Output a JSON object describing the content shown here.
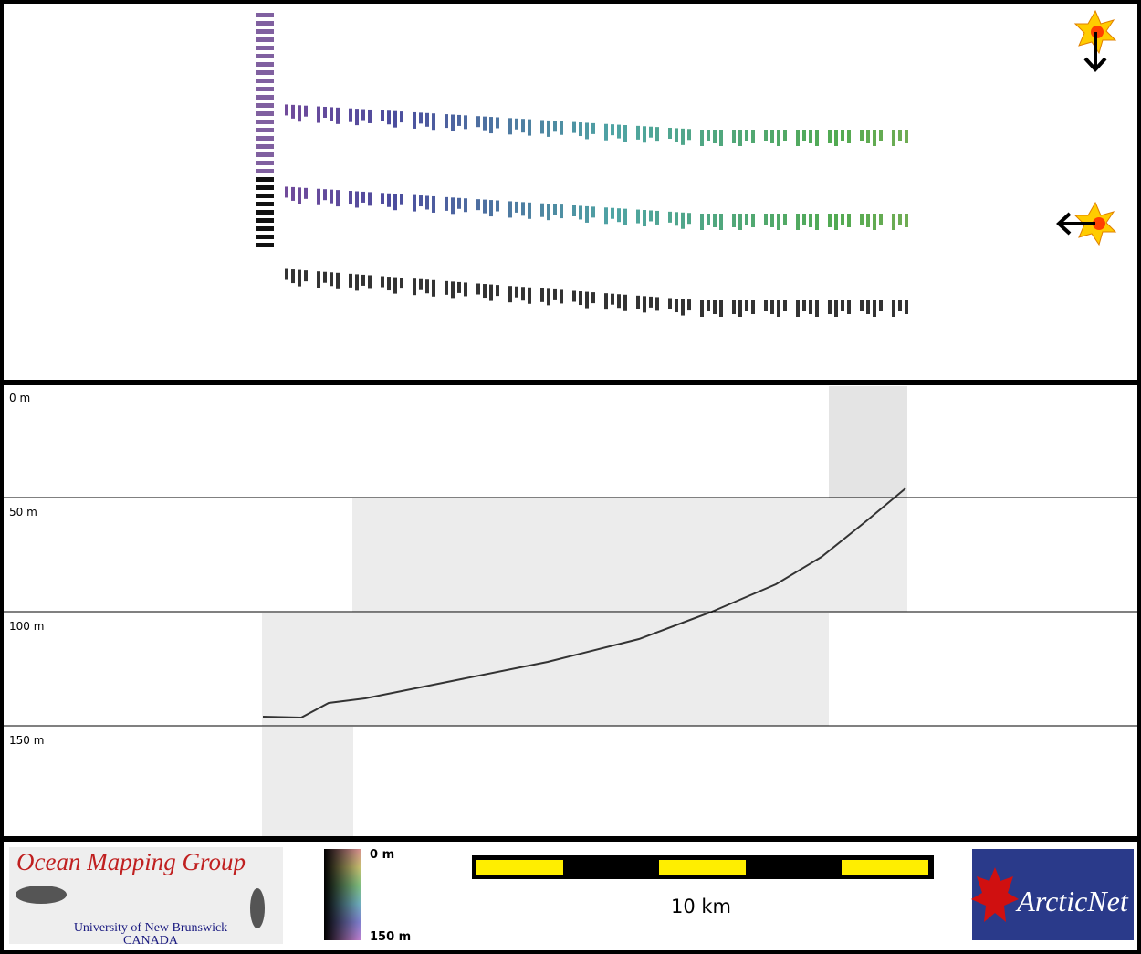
{
  "depth_panel": {
    "labels": [
      "0 m",
      "50 m",
      "100 m",
      "150 m"
    ]
  },
  "legend": {
    "logo": {
      "title": "Ocean Mapping Group",
      "institution": "University of New Brunswick",
      "country": "CANADA"
    },
    "colorbar": {
      "top": "0 m",
      "bottom": "150 m"
    },
    "scale_bar": {
      "label": "10 km"
    },
    "partner_logo": "ArcticNet"
  }
}
